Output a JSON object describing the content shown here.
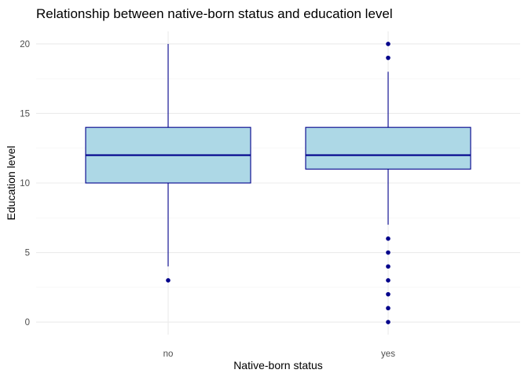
{
  "chart_data": {
    "type": "boxplot",
    "title": "Relationship between native-born status and education level",
    "xlabel": "Native-born status",
    "ylabel": "Education level",
    "categories": [
      "no",
      "yes"
    ],
    "boxes": [
      {
        "category": "no",
        "lower_whisker": 4,
        "q1": 10,
        "median": 12,
        "q3": 14,
        "upper_whisker": 20,
        "outliers": [
          3
        ]
      },
      {
        "category": "yes",
        "lower_whisker": 7,
        "q1": 11,
        "median": 12,
        "q3": 14,
        "upper_whisker": 18,
        "outliers": [
          20,
          19,
          6,
          5,
          4,
          3,
          2,
          1,
          0
        ]
      }
    ],
    "yticks": [
      "0",
      "5",
      "10",
      "15",
      "20"
    ],
    "ylim": [
      -0.9,
      20.9
    ],
    "grid": true,
    "legend": "none",
    "colors": {
      "box_fill": "#add8e6",
      "box_stroke": "#00008b",
      "outlier": "#00008b"
    }
  }
}
